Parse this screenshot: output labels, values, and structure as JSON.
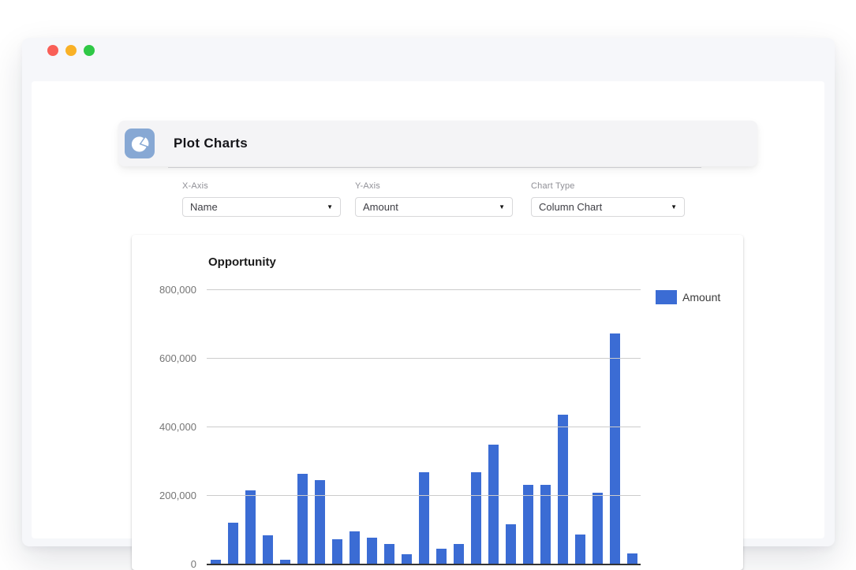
{
  "window": {
    "controls": {
      "close_color": "#f95f57",
      "minimize_color": "#f9b126",
      "maximize_color": "#2fc846"
    }
  },
  "header": {
    "title": "Plot Charts",
    "icon": "pie-chart-icon",
    "icon_bg_color": "#87a8d4"
  },
  "controls": {
    "x_axis": {
      "label": "X-Axis",
      "value": "Name"
    },
    "y_axis": {
      "label": "Y-Axis",
      "value": "Amount"
    },
    "chart_type": {
      "label": "Chart Type",
      "value": "Column Chart"
    }
  },
  "chart_data": {
    "type": "bar",
    "title": "Opportunity",
    "series": [
      {
        "name": "Amount",
        "color": "#3b6cd4",
        "values": [
          14000,
          121000,
          217000,
          84000,
          14000,
          265000,
          246000,
          73000,
          97000,
          78000,
          59000,
          30000,
          268000,
          47000,
          59000,
          268000,
          349000,
          118000,
          232000,
          232000,
          437000,
          88000,
          209000,
          673000,
          33000
        ]
      }
    ],
    "xlabel": "",
    "ylabel": "",
    "x_tick_labels_visible": false,
    "ylim": [
      0,
      800000
    ],
    "yticks": [
      0,
      200000,
      400000,
      600000,
      800000
    ],
    "ytick_labels": [
      "0",
      "200,000",
      "400,000",
      "600,000",
      "800,000"
    ],
    "grid": true,
    "legend_position": "right-top"
  }
}
